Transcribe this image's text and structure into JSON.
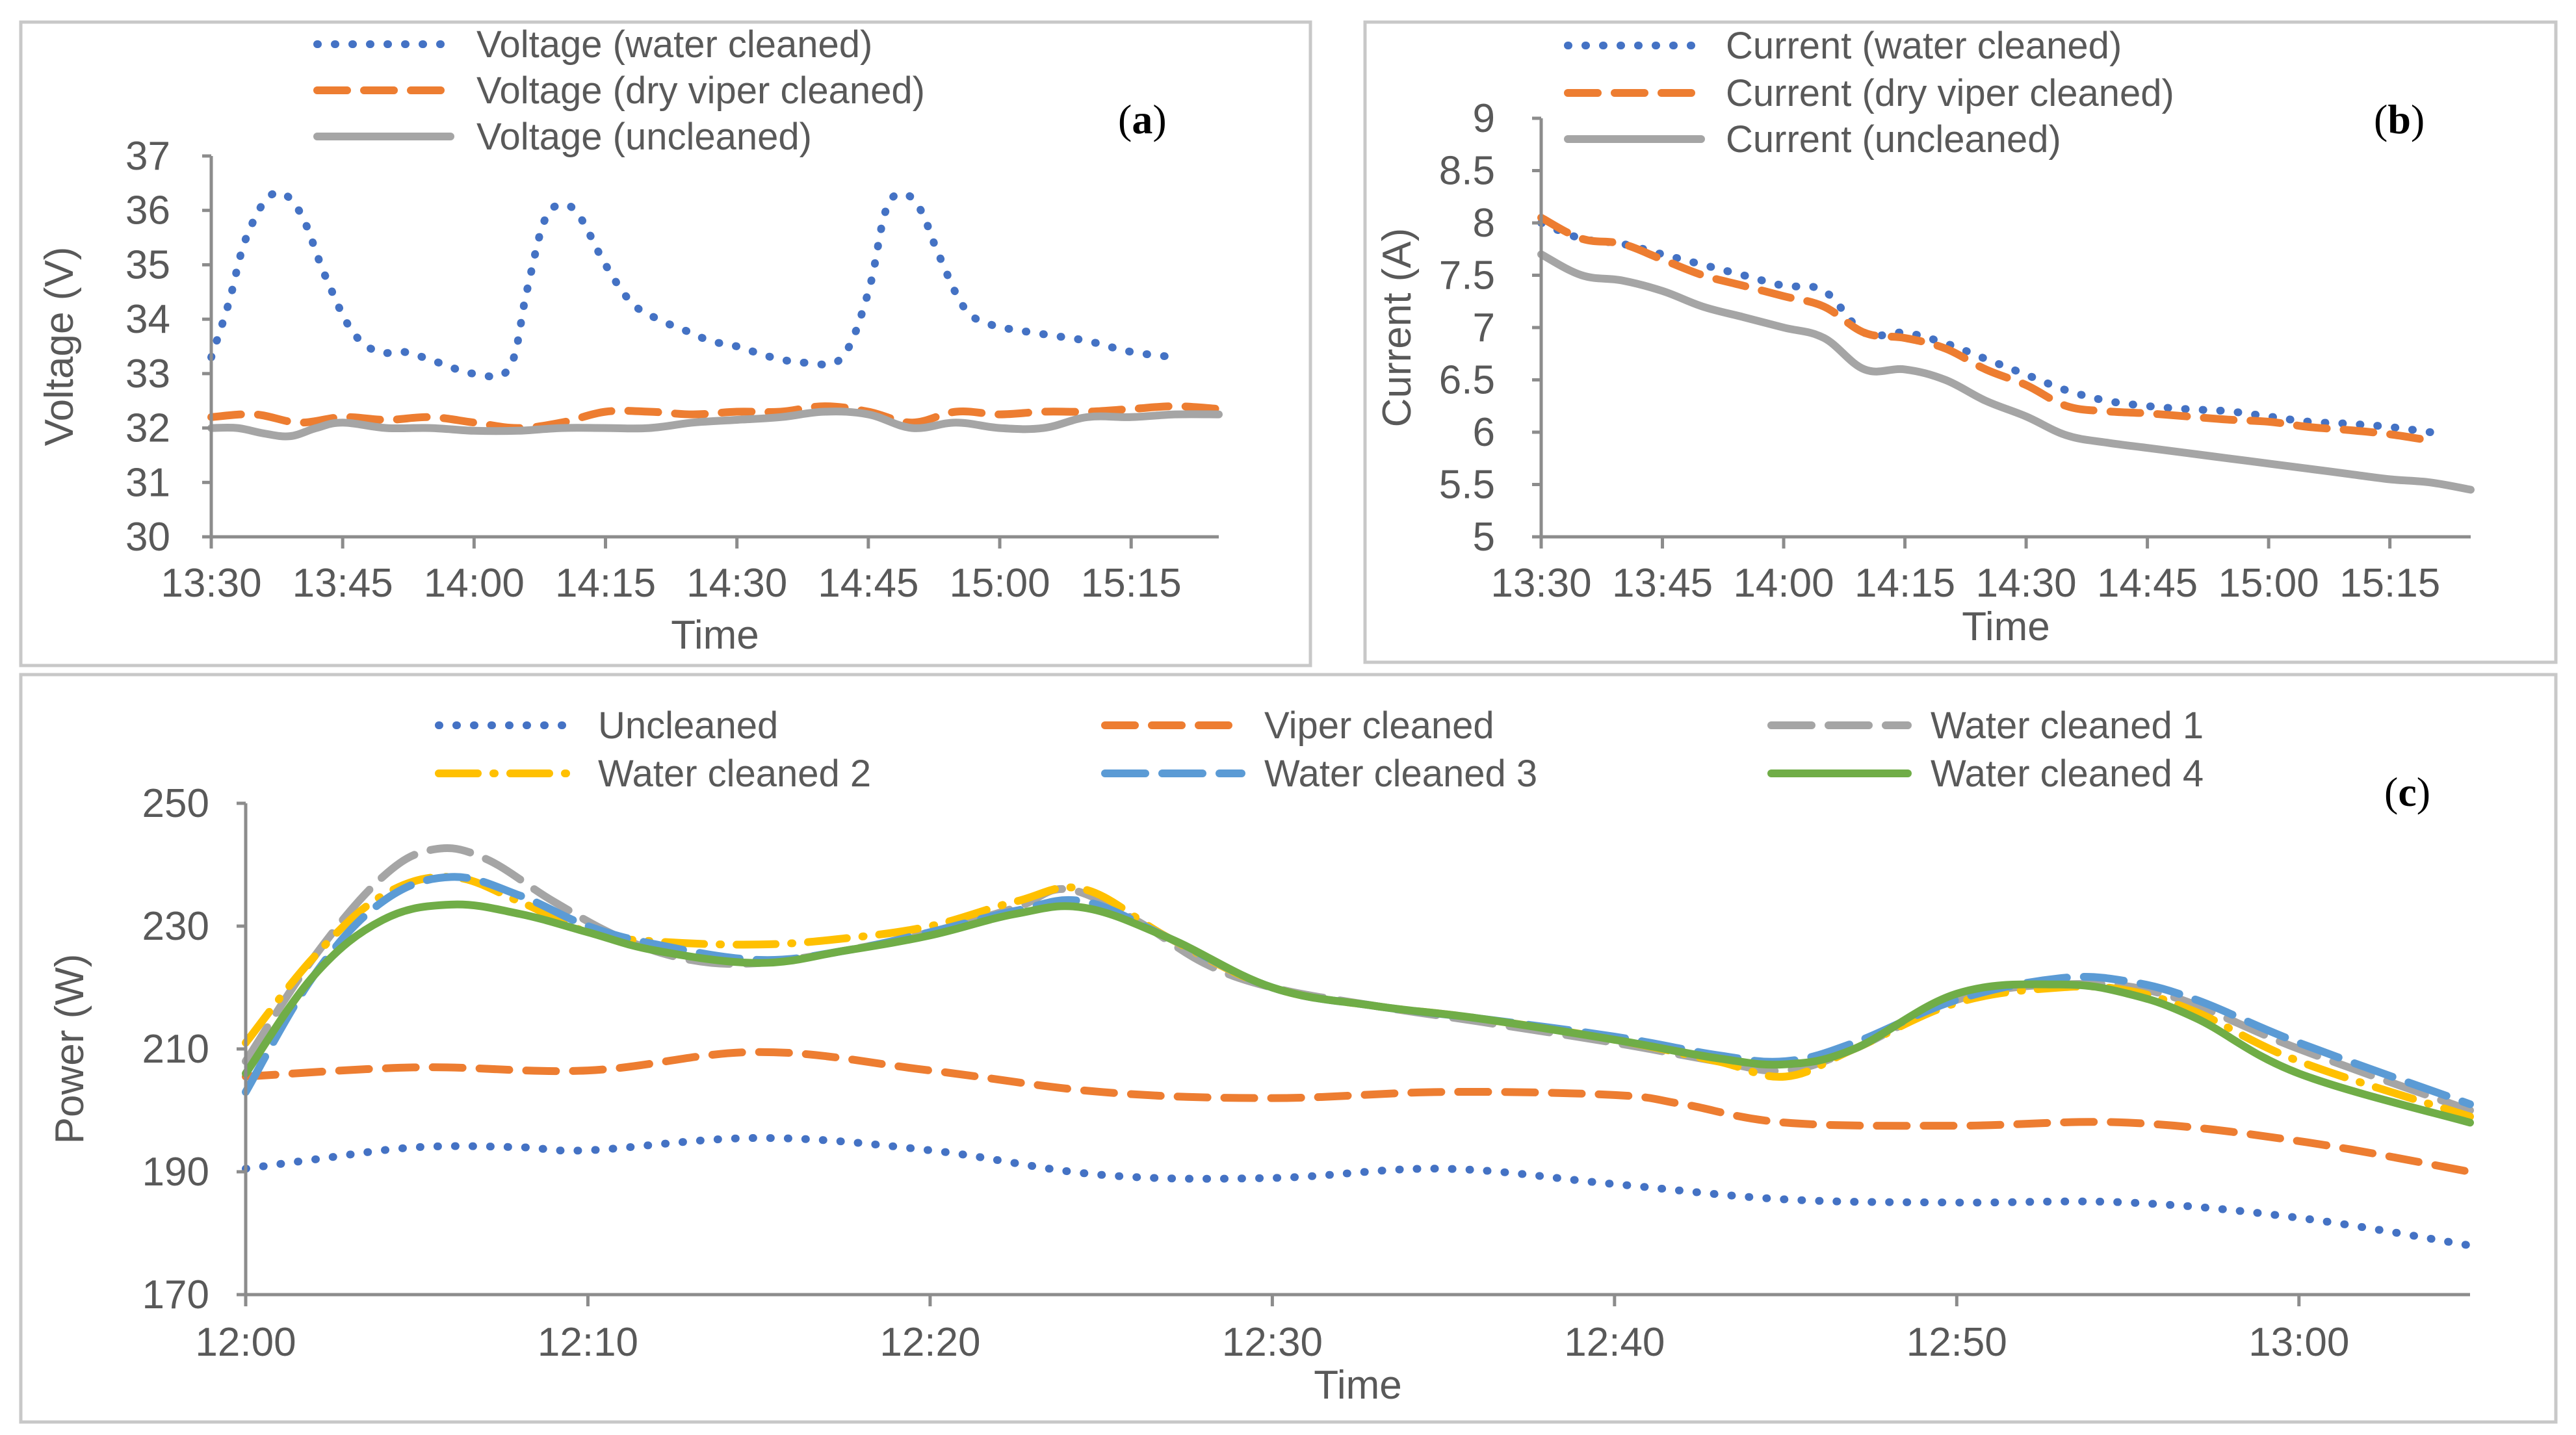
{
  "colors": {
    "blue": "#4472C4",
    "orange": "#ED7D31",
    "gray": "#A5A5A5",
    "gold": "#FFC000",
    "lightblue": "#5B9BD5",
    "green": "#70AD47"
  },
  "chart_data": [
    {
      "id": "a",
      "type": "line",
      "panel_label": [
        "(",
        "a",
        ")"
      ],
      "xlabel": "Time",
      "ylabel": "Voltage (V)",
      "ylim": [
        30,
        37
      ],
      "yticks": [
        "30",
        "31",
        "32",
        "33",
        "34",
        "35",
        "36",
        "37"
      ],
      "xlim": [
        0,
        115
      ],
      "xticks": [
        {
          "label": "13:30",
          "value": 0
        },
        {
          "label": "13:45",
          "value": 15
        },
        {
          "label": "14:00",
          "value": 30
        },
        {
          "label": "14:15",
          "value": 45
        },
        {
          "label": "14:30",
          "value": 60
        },
        {
          "label": "14:45",
          "value": 75
        },
        {
          "label": "15:00",
          "value": 90
        },
        {
          "label": "15:15",
          "value": 105
        }
      ],
      "legend_position": "top",
      "series": [
        {
          "name": "Voltage (water cleaned)",
          "color": "blue",
          "style": "dotted",
          "x": [
            0,
            2,
            4,
            7,
            10,
            13,
            16,
            19,
            22,
            26,
            30,
            34,
            36,
            38,
            40,
            42,
            45,
            48,
            51,
            54,
            57,
            60,
            64,
            68,
            72,
            75,
            77,
            79,
            81,
            83,
            86,
            89,
            92,
            96,
            100,
            105,
            110
          ],
          "y": [
            33.3,
            34.3,
            35.5,
            36.3,
            36.0,
            34.8,
            33.8,
            33.4,
            33.4,
            33.2,
            33.0,
            33.1,
            34.5,
            35.8,
            36.1,
            35.9,
            35.0,
            34.3,
            34.0,
            33.8,
            33.6,
            33.5,
            33.3,
            33.2,
            33.3,
            34.5,
            36.0,
            36.3,
            36.0,
            35.2,
            34.2,
            33.9,
            33.8,
            33.7,
            33.6,
            33.4,
            33.3
          ]
        },
        {
          "name": "Voltage (dry viper cleaned)",
          "color": "orange",
          "style": "dashed",
          "x": [
            0,
            5,
            10,
            15,
            20,
            25,
            30,
            35,
            40,
            45,
            50,
            55,
            60,
            65,
            70,
            75,
            80,
            85,
            90,
            95,
            100,
            105,
            110,
            115
          ],
          "y": [
            32.2,
            32.25,
            32.1,
            32.2,
            32.15,
            32.2,
            32.1,
            32.0,
            32.1,
            32.3,
            32.3,
            32.25,
            32.3,
            32.3,
            32.4,
            32.3,
            32.1,
            32.3,
            32.25,
            32.3,
            32.3,
            32.35,
            32.4,
            32.35
          ]
        },
        {
          "name": "Voltage (uncleaned)",
          "color": "gray",
          "style": "solid",
          "x": [
            0,
            3,
            6,
            9,
            12,
            15,
            20,
            25,
            30,
            35,
            40,
            45,
            50,
            55,
            60,
            65,
            70,
            75,
            80,
            85,
            90,
            95,
            100,
            105,
            110,
            115
          ],
          "y": [
            32.0,
            32.0,
            31.9,
            31.85,
            32.0,
            32.1,
            32.0,
            32.0,
            31.95,
            31.95,
            32.0,
            32.0,
            32.0,
            32.1,
            32.15,
            32.2,
            32.3,
            32.25,
            32.0,
            32.1,
            32.0,
            32.0,
            32.2,
            32.2,
            32.25,
            32.25
          ]
        }
      ]
    },
    {
      "id": "b",
      "type": "line",
      "panel_label": [
        "(",
        "b",
        ")"
      ],
      "xlabel": "Time",
      "ylabel": "Current (A)",
      "ylim": [
        5,
        9
      ],
      "yticks": [
        "5",
        "5.5",
        "6",
        "6.5",
        "7",
        "7.5",
        "8",
        "8.5",
        "9"
      ],
      "xlim": [
        0,
        115
      ],
      "xticks": [
        {
          "label": "13:30",
          "value": 0
        },
        {
          "label": "13:45",
          "value": 15
        },
        {
          "label": "14:00",
          "value": 30
        },
        {
          "label": "14:15",
          "value": 45
        },
        {
          "label": "14:30",
          "value": 60
        },
        {
          "label": "14:45",
          "value": 75
        },
        {
          "label": "15:00",
          "value": 90
        },
        {
          "label": "15:15",
          "value": 105
        }
      ],
      "legend_position": "top",
      "series": [
        {
          "name": "Current (water cleaned)",
          "color": "blue",
          "style": "dotted",
          "x": [
            0,
            5,
            10,
            15,
            20,
            25,
            30,
            35,
            40,
            45,
            50,
            55,
            60,
            65,
            70,
            75,
            80,
            85,
            90,
            95,
            100,
            105,
            110
          ],
          "y": [
            8.0,
            7.85,
            7.8,
            7.7,
            7.6,
            7.5,
            7.4,
            7.35,
            6.95,
            6.95,
            6.85,
            6.7,
            6.55,
            6.4,
            6.3,
            6.25,
            6.22,
            6.2,
            6.15,
            6.1,
            6.08,
            6.05,
            6.0
          ]
        },
        {
          "name": "Current (dry viper cleaned)",
          "color": "orange",
          "style": "dashed",
          "x": [
            0,
            5,
            10,
            15,
            20,
            25,
            30,
            35,
            40,
            45,
            50,
            55,
            60,
            65,
            70,
            75,
            80,
            85,
            90,
            95,
            100,
            105,
            110
          ],
          "y": [
            8.05,
            7.85,
            7.8,
            7.65,
            7.5,
            7.4,
            7.3,
            7.2,
            6.95,
            6.9,
            6.8,
            6.6,
            6.45,
            6.25,
            6.2,
            6.18,
            6.15,
            6.12,
            6.1,
            6.05,
            6.02,
            5.98,
            5.92
          ]
        },
        {
          "name": "Current (uncleaned)",
          "color": "gray",
          "style": "solid",
          "x": [
            0,
            5,
            10,
            15,
            20,
            25,
            30,
            35,
            40,
            45,
            50,
            55,
            60,
            65,
            70,
            75,
            80,
            85,
            90,
            95,
            100,
            105,
            110,
            115
          ],
          "y": [
            7.7,
            7.5,
            7.45,
            7.35,
            7.2,
            7.1,
            7.0,
            6.9,
            6.6,
            6.6,
            6.5,
            6.3,
            6.15,
            5.97,
            5.9,
            5.85,
            5.8,
            5.75,
            5.7,
            5.65,
            5.6,
            5.55,
            5.52,
            5.45
          ]
        }
      ]
    },
    {
      "id": "c",
      "type": "line",
      "panel_label": [
        "(",
        "c",
        ")"
      ],
      "xlabel": "Time",
      "ylabel": "Power (W)",
      "ylim": [
        170,
        250
      ],
      "yticks": [
        "170",
        "190",
        "210",
        "230",
        "250"
      ],
      "xlim": [
        0,
        65
      ],
      "xticks": [
        {
          "label": "12:00",
          "value": 0
        },
        {
          "label": "12:10",
          "value": 10
        },
        {
          "label": "12:20",
          "value": 20
        },
        {
          "label": "12:30",
          "value": 30
        },
        {
          "label": "12:40",
          "value": 40
        },
        {
          "label": "12:50",
          "value": 50
        },
        {
          "label": "13:00",
          "value": 60
        }
      ],
      "legend_position": "top",
      "series": [
        {
          "name": "Uncleaned",
          "color": "blue",
          "style": "dotted",
          "x": [
            0,
            2,
            5,
            8,
            10,
            15,
            20,
            25,
            30,
            35,
            40,
            45,
            50,
            55,
            60,
            65
          ],
          "y": [
            190.5,
            192,
            194,
            194,
            193.5,
            195.5,
            193.5,
            189.5,
            189,
            190.5,
            188,
            185.5,
            185,
            185,
            182.5,
            178
          ]
        },
        {
          "name": "Viper cleaned",
          "color": "orange",
          "style": "dashed",
          "x": [
            0,
            5,
            10,
            15,
            20,
            25,
            30,
            35,
            40,
            42,
            45,
            50,
            55,
            60,
            65
          ],
          "y": [
            205.5,
            207,
            206.5,
            209.5,
            206.5,
            203,
            202,
            203,
            202.5,
            201,
            198,
            197.5,
            198,
            195,
            190
          ]
        },
        {
          "name": "Water cleaned 1",
          "color": "gray",
          "style": "longdash",
          "x": [
            0,
            2,
            4,
            5.5,
            7,
            9,
            11,
            13,
            15,
            17.5,
            20,
            22.5,
            24,
            26,
            28,
            30,
            33,
            36,
            40,
            43,
            45,
            47,
            50,
            53,
            56,
            60,
            65
          ],
          "y": [
            208,
            225,
            238,
            242.5,
            241,
            234,
            228,
            224.5,
            224,
            226,
            229,
            233,
            236,
            231,
            224,
            220,
            217,
            214.5,
            211,
            208,
            206.5,
            210,
            218,
            220.5,
            219,
            210,
            200
          ]
        },
        {
          "name": "Water cleaned 2",
          "color": "gold",
          "style": "dashdot",
          "x": [
            0,
            2,
            4,
            6,
            8,
            10,
            12,
            15,
            17.5,
            20,
            22.5,
            24.5,
            27,
            30,
            33,
            36,
            40,
            43,
            45,
            47,
            50,
            53,
            55,
            57,
            60,
            65
          ],
          "y": [
            211,
            225,
            235,
            238,
            234,
            229,
            227.5,
            227,
            228,
            230,
            234,
            236,
            228,
            220,
            217,
            215,
            211.5,
            208,
            205.5,
            210,
            217.5,
            220,
            219.5,
            216,
            208,
            199
          ]
        },
        {
          "name": "Water cleaned 3",
          "color": "lightblue",
          "style": "longdash",
          "x": [
            0,
            2,
            4,
            6,
            8,
            10,
            12,
            15,
            17.5,
            20,
            22.5,
            24.5,
            27,
            30,
            33,
            36,
            40,
            43,
            45,
            47,
            50,
            53,
            55,
            57,
            60,
            65
          ],
          "y": [
            203,
            222,
            234,
            238,
            235,
            230,
            227,
            224.5,
            226,
            229,
            232.5,
            234,
            228,
            220,
            217,
            215,
            212,
            209,
            208,
            211,
            218,
            221.5,
            221,
            218,
            211,
            201
          ]
        },
        {
          "name": "Water cleaned 4",
          "color": "green",
          "style": "solid",
          "x": [
            0,
            2,
            4,
            6,
            8,
            10,
            12,
            15,
            17.5,
            20,
            22.5,
            24.5,
            27,
            30,
            33,
            36,
            40,
            43,
            45,
            47,
            50,
            53,
            55,
            57,
            60,
            65
          ],
          "y": [
            206,
            222,
            231,
            233.5,
            232,
            229,
            226,
            224,
            226,
            228.5,
            232,
            233,
            228,
            220,
            217,
            215,
            211.5,
            208.5,
            207.5,
            210,
            219,
            220.5,
            219,
            215,
            206,
            198
          ]
        }
      ]
    }
  ]
}
